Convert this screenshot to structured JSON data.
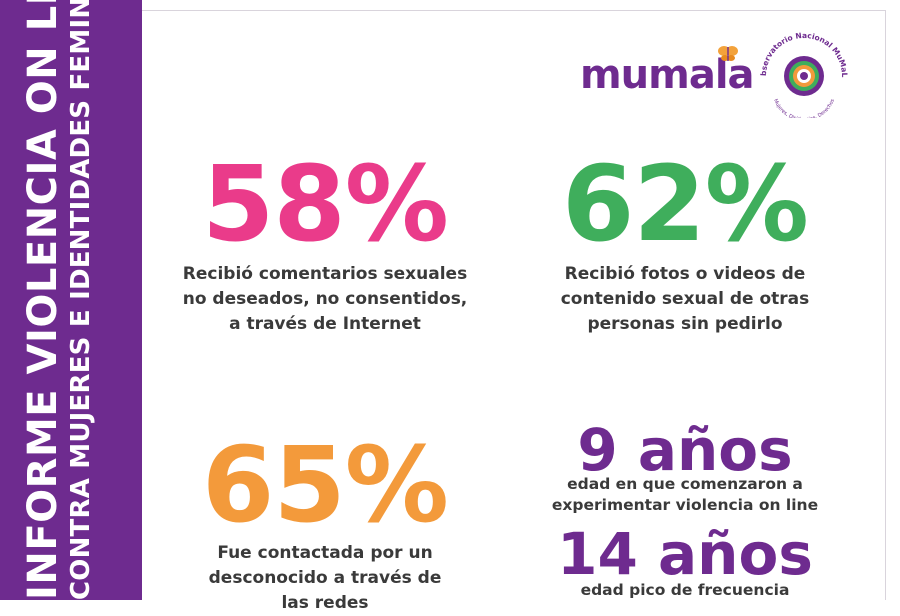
{
  "sidebar": {
    "title": "INFORME VIOLENCIA ON LINE",
    "subtitle": "CONTRA MUJERES E IDENTIDADES FEMINIZADAS"
  },
  "logos": {
    "mumala": "mumala",
    "observatorio": "Observatorio Nacional MuMaLá",
    "observatorio_tagline": "Mujeres, Disidencias, Derechos"
  },
  "stats": [
    {
      "value": "58%",
      "description": "Recibió comentarios sexuales\nno deseados, no consentidos,\na través de Internet",
      "color": "#ea3b8a"
    },
    {
      "value": "62%",
      "description": "Recibió fotos o videos de\ncontenido sexual de otras\npersonas sin pedirlo",
      "color": "#3fae5c"
    },
    {
      "value": "65%",
      "description": "Fue contactada por un\ndesconocido a través de\nlas redes",
      "color": "#f39a3b"
    },
    {
      "value": "9 años",
      "description": "edad en que comenzaron a\nexperimentar violencia on line",
      "color": "#6e2b8f"
    },
    {
      "value": "14 años",
      "description": "edad pico de frecuencia",
      "color": "#6e2b8f"
    }
  ]
}
